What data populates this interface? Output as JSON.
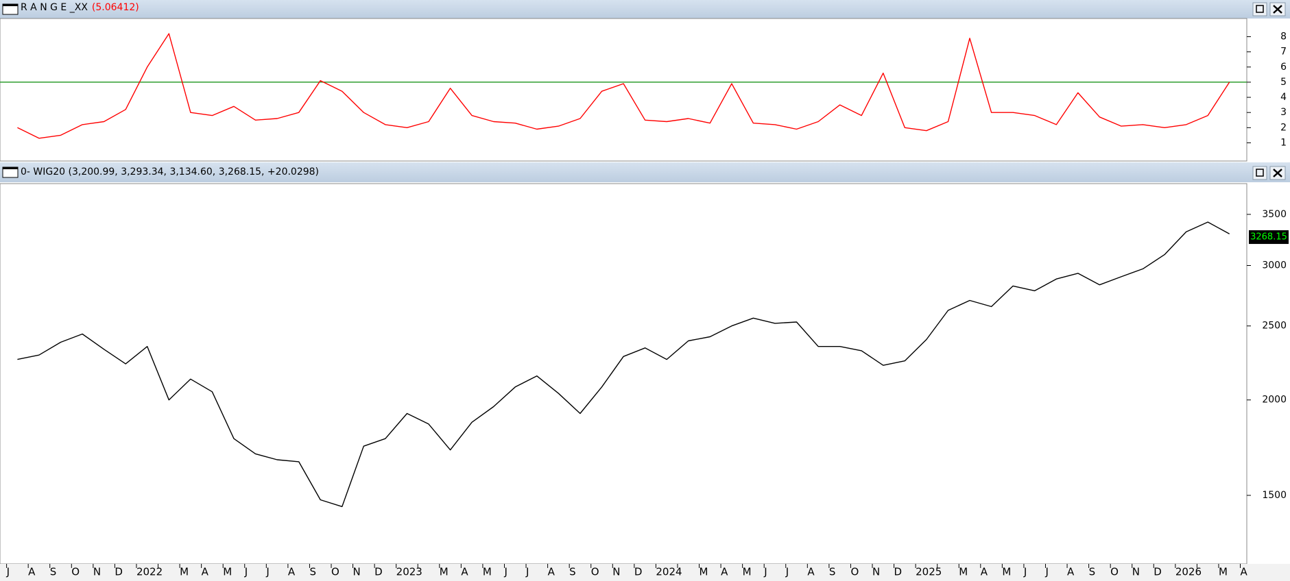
{
  "chart_data": [
    {
      "type": "line",
      "title": "R A N G E _XX",
      "title_value": "(5.06412)",
      "color": "#ff0000",
      "values": [
        2.0,
        1.3,
        1.5,
        2.2,
        2.4,
        3.2,
        6.0,
        8.2,
        3.0,
        2.8,
        3.4,
        2.5,
        2.6,
        3.0,
        5.1,
        4.4,
        3.0,
        2.2,
        2.0,
        2.4,
        4.6,
        2.8,
        2.4,
        2.3,
        1.9,
        2.1,
        2.6,
        4.4,
        4.9,
        2.5,
        2.4,
        2.6,
        2.3,
        4.9,
        2.3,
        2.2,
        1.9,
        2.4,
        3.5,
        2.8,
        5.6,
        2.0,
        1.8,
        2.4,
        7.9,
        3.0,
        3.0,
        2.8,
        2.2,
        4.3,
        2.7,
        2.1,
        2.2,
        2.0,
        2.2,
        2.8,
        5.0,
        null
      ],
      "reference_line": 5,
      "reference_color": "#2e9e2e",
      "ylim": [
        -0.2,
        9.2
      ],
      "yticks": [
        1,
        2,
        3,
        4,
        5,
        6,
        7,
        8
      ]
    },
    {
      "type": "line",
      "title": "0- WIG20 (3,200.99, 3,293.34, 3,134.60, 3,268.15, +20.0298)",
      "color": "#000000",
      "categories": [
        "J",
        "A",
        "S",
        "O",
        "N",
        "D",
        "2022",
        null,
        "M",
        "A",
        "M",
        "J",
        "J",
        "A",
        "S",
        "O",
        "N",
        "D",
        "2023",
        null,
        "M",
        "A",
        "M",
        "J",
        "J",
        "A",
        "S",
        "O",
        "N",
        "D",
        "2024",
        null,
        "M",
        "A",
        "M",
        "J",
        "J",
        "A",
        "S",
        "O",
        "N",
        "D",
        "2025",
        null,
        "M",
        "A",
        "M",
        "J",
        "J",
        "A",
        "S",
        "O",
        "N",
        "D",
        "2026",
        null,
        "M",
        "A"
      ],
      "values": [
        2260,
        2290,
        2380,
        2440,
        2330,
        2230,
        2350,
        2000,
        2130,
        2050,
        1780,
        1700,
        1670,
        1660,
        1480,
        1450,
        1740,
        1780,
        1920,
        1860,
        1720,
        1870,
        1960,
        2080,
        2150,
        2040,
        1920,
        2080,
        2280,
        2340,
        2260,
        2390,
        2420,
        2500,
        2560,
        2520,
        2530,
        2350,
        2350,
        2320,
        2220,
        2250,
        2400,
        2620,
        2700,
        2650,
        2820,
        2780,
        2880,
        2930,
        2830,
        2900,
        2970,
        3100,
        3320,
        3420,
        3300,
        null
      ],
      "last_value": 3268.15,
      "last_value_color": "#00ff00",
      "log_scale": true,
      "ylim": [
        1220,
        3840
      ],
      "yticks": [
        1500,
        2000,
        2500,
        3000,
        3500
      ]
    }
  ]
}
